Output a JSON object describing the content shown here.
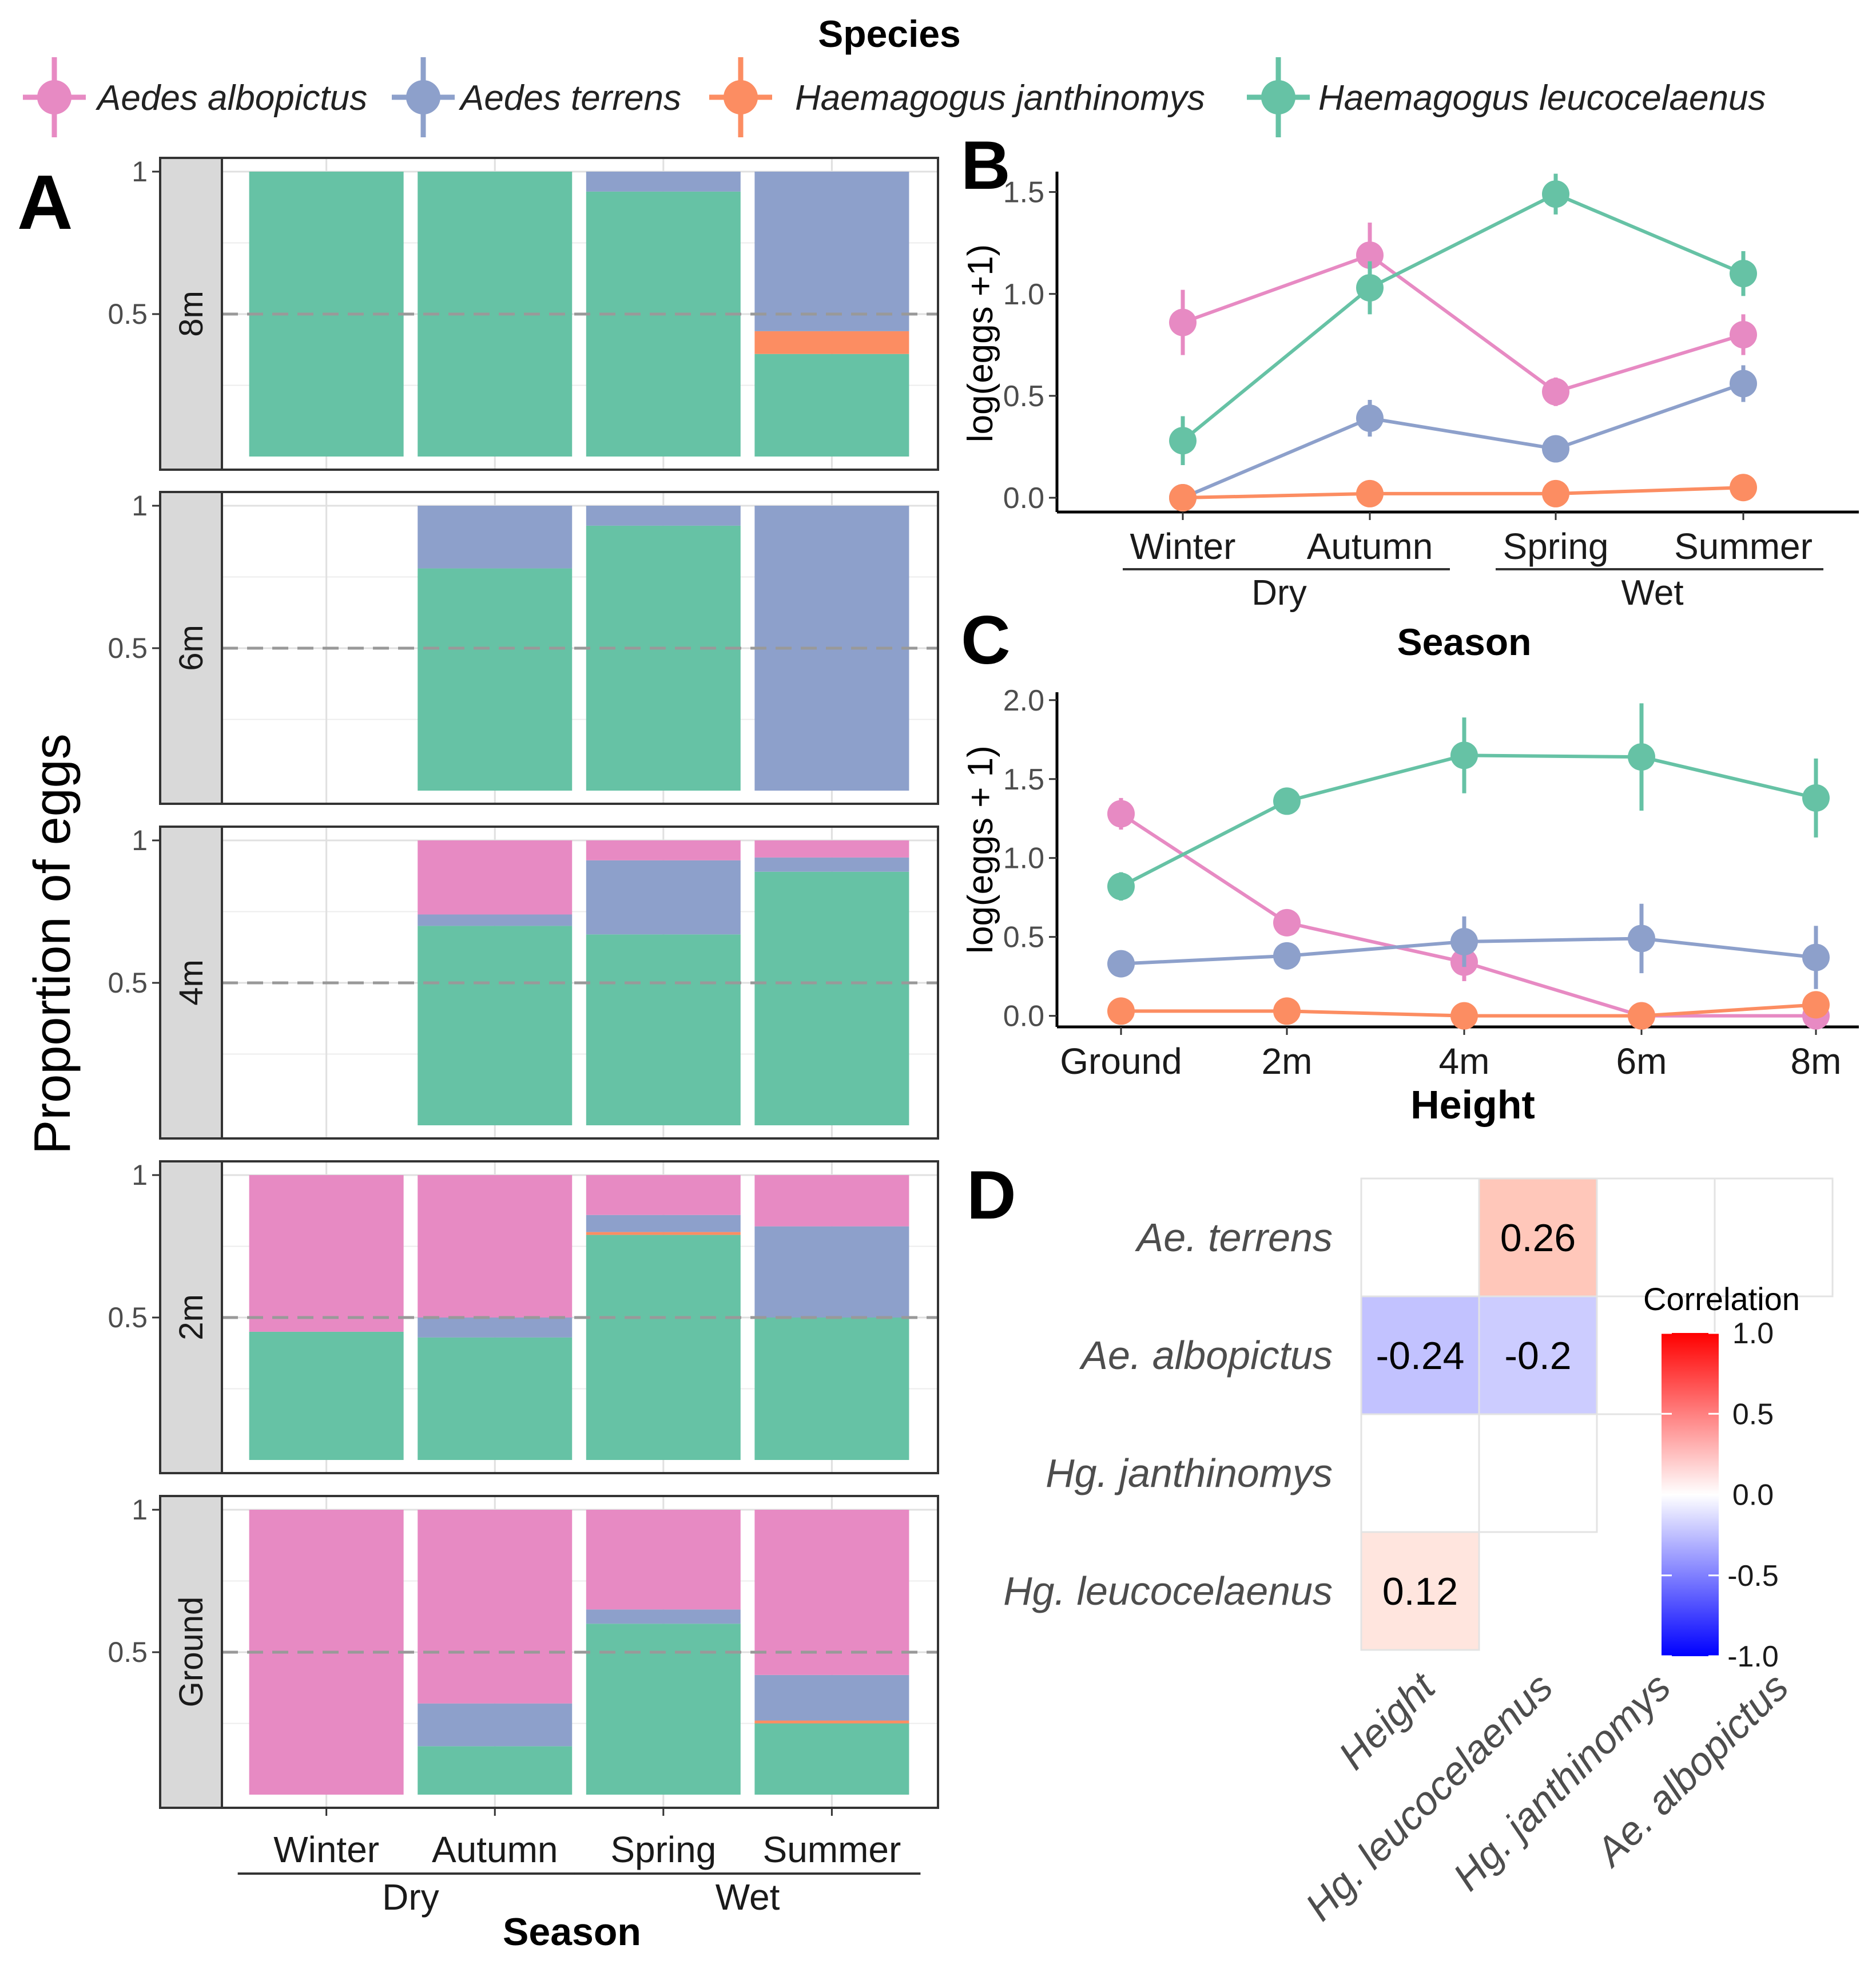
{
  "legend": {
    "title": "Species",
    "items": [
      {
        "label": "Aedes albopictus",
        "color": "#E78AC3"
      },
      {
        "label": "Aedes terrens",
        "color": "#8DA0CB"
      },
      {
        "label": "Haemagogus janthinomys",
        "color": "#FC8D62"
      },
      {
        "label": "Haemagogus leucocelaenus",
        "color": "#66C2A5"
      }
    ]
  },
  "colors": {
    "albopictus": "#E78AC3",
    "terrens": "#8DA0CB",
    "janthinomys": "#FC8D62",
    "leucocelaenus": "#66C2A5",
    "panel_bg": "#D9D9D9"
  },
  "chart_data": [
    {
      "panel": "A",
      "type": "bar",
      "stacked": true,
      "ylabel": "Proportion of eggs",
      "xlabel": "Season",
      "categories": [
        "Winter",
        "Autumn",
        "Spring",
        "Summer"
      ],
      "groups": [
        {
          "label": "Dry",
          "categories": [
            "Winter",
            "Autumn"
          ]
        },
        {
          "label": "Wet",
          "categories": [
            "Spring",
            "Summer"
          ]
        }
      ],
      "y_ticks": [
        "1",
        "0.5"
      ],
      "reference_line": 0.5,
      "facets": [
        {
          "label": "8m",
          "stacks": [
            {
              "leucocelaenus": 1.0,
              "janthinomys": 0.0,
              "terrens": 0.0,
              "albopictus": 0.0
            },
            {
              "leucocelaenus": 1.0,
              "janthinomys": 0.0,
              "terrens": 0.0,
              "albopictus": 0.0
            },
            {
              "leucocelaenus": 0.93,
              "janthinomys": 0.0,
              "terrens": 0.07,
              "albopictus": 0.0
            },
            {
              "leucocelaenus": 0.36,
              "janthinomys": 0.08,
              "terrens": 0.56,
              "albopictus": 0.0
            }
          ]
        },
        {
          "label": "6m",
          "stacks": [
            null,
            {
              "leucocelaenus": 0.78,
              "janthinomys": 0.0,
              "terrens": 0.22,
              "albopictus": 0.0
            },
            {
              "leucocelaenus": 0.93,
              "janthinomys": 0.0,
              "terrens": 0.07,
              "albopictus": 0.0
            },
            {
              "leucocelaenus": 0.0,
              "janthinomys": 0.0,
              "terrens": 1.0,
              "albopictus": 0.0
            }
          ]
        },
        {
          "label": "4m",
          "stacks": [
            null,
            {
              "leucocelaenus": 0.7,
              "janthinomys": 0.0,
              "terrens": 0.04,
              "albopictus": 0.26
            },
            {
              "leucocelaenus": 0.67,
              "janthinomys": 0.0,
              "terrens": 0.26,
              "albopictus": 0.07
            },
            {
              "leucocelaenus": 0.89,
              "janthinomys": 0.0,
              "terrens": 0.05,
              "albopictus": 0.06
            }
          ]
        },
        {
          "label": "2m",
          "stacks": [
            {
              "leucocelaenus": 0.45,
              "janthinomys": 0.0,
              "terrens": 0.0,
              "albopictus": 0.55
            },
            {
              "leucocelaenus": 0.43,
              "janthinomys": 0.0,
              "terrens": 0.07,
              "albopictus": 0.5
            },
            {
              "leucocelaenus": 0.79,
              "janthinomys": 0.01,
              "terrens": 0.06,
              "albopictus": 0.14
            },
            {
              "leucocelaenus": 0.5,
              "janthinomys": 0.0,
              "terrens": 0.32,
              "albopictus": 0.18
            }
          ]
        },
        {
          "label": "Ground",
          "stacks": [
            {
              "leucocelaenus": 0.0,
              "janthinomys": 0.0,
              "terrens": 0.0,
              "albopictus": 1.0
            },
            {
              "leucocelaenus": 0.17,
              "janthinomys": 0.0,
              "terrens": 0.15,
              "albopictus": 0.68
            },
            {
              "leucocelaenus": 0.6,
              "janthinomys": 0.0,
              "terrens": 0.05,
              "albopictus": 0.35
            },
            {
              "leucocelaenus": 0.25,
              "janthinomys": 0.01,
              "terrens": 0.16,
              "albopictus": 0.58
            }
          ]
        }
      ]
    },
    {
      "panel": "B",
      "type": "line",
      "xlabel": "Season",
      "ylabel": "log(eggs +1)",
      "x": [
        "Winter",
        "Autumn",
        "Spring",
        "Summer"
      ],
      "groups": [
        {
          "label": "Dry",
          "categories": [
            "Winter",
            "Autumn"
          ]
        },
        {
          "label": "Wet",
          "categories": [
            "Spring",
            "Summer"
          ]
        }
      ],
      "ylim": [
        -0.07,
        1.6
      ],
      "y_ticks": [
        "0.0",
        "0.5",
        "1.0",
        "1.5"
      ],
      "series": [
        {
          "key": "albopictus",
          "name": "Aedes albopictus",
          "values": [
            0.86,
            1.19,
            0.52,
            0.8
          ],
          "err": [
            0.16,
            0.16,
            0.07,
            0.1
          ]
        },
        {
          "key": "terrens",
          "name": "Aedes terrens",
          "values": [
            0.0,
            0.39,
            0.24,
            0.56
          ],
          "err": [
            0.0,
            0.09,
            0.04,
            0.09
          ]
        },
        {
          "key": "janthinomys",
          "name": "Haemagogus janthinomys",
          "values": [
            0.0,
            0.02,
            0.02,
            0.05
          ],
          "err": [
            0.0,
            0.01,
            0.01,
            0.02
          ]
        },
        {
          "key": "leucocelaenus",
          "name": "Haemagogus leucocelaenus",
          "values": [
            0.28,
            1.03,
            1.49,
            1.1
          ],
          "err": [
            0.12,
            0.13,
            0.1,
            0.11
          ]
        }
      ]
    },
    {
      "panel": "C",
      "type": "line",
      "xlabel": "Height",
      "ylabel": "log(eggs + 1)",
      "x": [
        "Ground",
        "2m",
        "4m",
        "6m",
        "8m"
      ],
      "ylim": [
        -0.07,
        2.05
      ],
      "y_ticks": [
        "0.0",
        "0.5",
        "1.0",
        "1.5",
        "2.0"
      ],
      "series": [
        {
          "key": "albopictus",
          "name": "Aedes albopictus",
          "values": [
            1.28,
            0.59,
            0.34,
            0.0,
            0.0
          ],
          "err": [
            0.1,
            0.06,
            0.12,
            0.0,
            0.0
          ]
        },
        {
          "key": "terrens",
          "name": "Aedes terrens",
          "values": [
            0.33,
            0.38,
            0.47,
            0.49,
            0.37
          ],
          "err": [
            0.05,
            0.06,
            0.16,
            0.22,
            0.2
          ]
        },
        {
          "key": "janthinomys",
          "name": "Haemagogus janthinomys",
          "values": [
            0.03,
            0.03,
            0.0,
            0.0,
            0.07
          ],
          "err": [
            0.02,
            0.02,
            0.0,
            0.0,
            0.03
          ]
        },
        {
          "key": "leucocelaenus",
          "name": "Haemagogus leucocelaenus",
          "values": [
            0.82,
            1.36,
            1.65,
            1.64,
            1.38
          ],
          "err": [
            0.09,
            0.08,
            0.24,
            0.34,
            0.25
          ]
        }
      ]
    },
    {
      "panel": "D",
      "type": "heatmap",
      "legend_title": "Correlation",
      "colorbar_ticks": [
        "1.0",
        "0.5",
        "0.0",
        "-0.5",
        "-1.0"
      ],
      "row_labels": [
        "Ae. terrens",
        "Ae. albopictus",
        "Hg. janthinomys",
        "Hg. leucocelaenus"
      ],
      "col_labels": [
        "Height",
        "Hg. leucocelaenus",
        "Hg. janthinomys",
        "Ae. albopictus"
      ],
      "cells": [
        {
          "row": 0,
          "col": 0,
          "value": null,
          "label": ""
        },
        {
          "row": 0,
          "col": 1,
          "value": 0.26,
          "label": "0.26"
        },
        {
          "row": 0,
          "col": 2,
          "value": null,
          "label": ""
        },
        {
          "row": 0,
          "col": 3,
          "value": null,
          "label": ""
        },
        {
          "row": 1,
          "col": 0,
          "value": -0.24,
          "label": "-0.24"
        },
        {
          "row": 1,
          "col": 1,
          "value": -0.2,
          "label": "-0.2"
        },
        {
          "row": 1,
          "col": 2,
          "value": null,
          "label": ""
        },
        {
          "row": 2,
          "col": 0,
          "value": null,
          "label": ""
        },
        {
          "row": 2,
          "col": 1,
          "value": null,
          "label": ""
        },
        {
          "row": 3,
          "col": 0,
          "value": 0.12,
          "label": "0.12"
        }
      ]
    }
  ],
  "panel_letters": [
    "A",
    "B",
    "C",
    "D"
  ]
}
